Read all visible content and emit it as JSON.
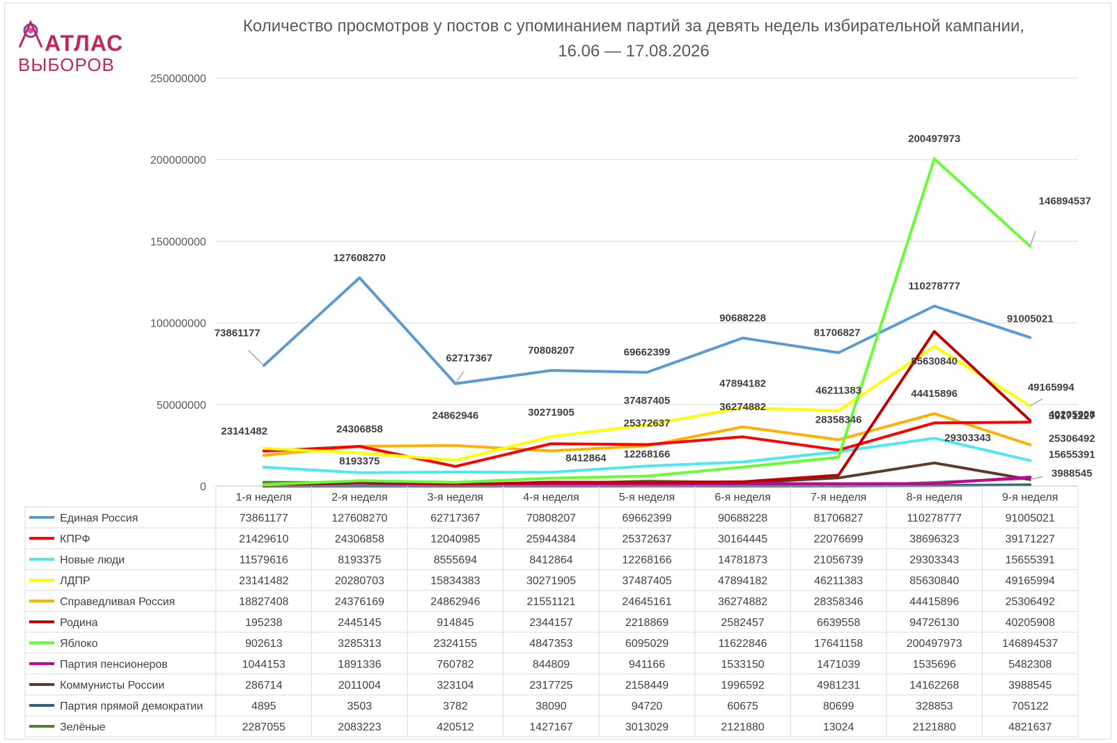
{
  "logo": {
    "line1": "АТЛАС",
    "line2": "ВЫБОРОВ"
  },
  "chart_data": {
    "type": "line",
    "title_line1": "Количество просмотров у постов с упоминанием партий за девять недель избирательной кампании,",
    "title_line2": "16.06 — 17.08.2026",
    "ylim": [
      0,
      250000000
    ],
    "yticks": [
      "0",
      "50000000",
      "100000000",
      "150000000",
      "200000000",
      "250000000"
    ],
    "ytick_values": [
      0,
      50000000,
      100000000,
      150000000,
      200000000,
      250000000
    ],
    "grid": true,
    "legend": "data-table",
    "categories": [
      "1-я неделя",
      "2-я неделя",
      "3-я неделя",
      "4-я неделя",
      "5-я неделя",
      "6-я неделя",
      "7-я неделя",
      "8-я неделя",
      "9-я неделя"
    ],
    "series": [
      {
        "name": "Единая Россия",
        "color": "#5b9bd5",
        "values": [
          73861177,
          127608270,
          62717367,
          70808207,
          69662399,
          90688228,
          81706827,
          110278777,
          91005021
        ]
      },
      {
        "name": "КПРФ",
        "color": "#ff0000",
        "values": [
          21429610,
          24306858,
          12040985,
          25944384,
          25372637,
          30164445,
          22076699,
          38696323,
          39171227
        ]
      },
      {
        "name": "Новые люди",
        "color": "#4ee8f2",
        "values": [
          11579616,
          8193375,
          8555694,
          8412864,
          12268166,
          14781873,
          21056739,
          29303343,
          15655391
        ]
      },
      {
        "name": "ЛДПР",
        "color": "#ffff00",
        "values": [
          23141482,
          20280703,
          15834383,
          30271905,
          37487405,
          47894182,
          46211383,
          85630840,
          49165994
        ]
      },
      {
        "name": "Справедливая Россия",
        "color": "#ffb000",
        "values": [
          18827408,
          24376169,
          24862946,
          21551121,
          24645161,
          36274882,
          28358346,
          44415896,
          25306492
        ]
      },
      {
        "name": "Родина",
        "color": "#c00000",
        "values": [
          195238,
          2445145,
          914845,
          2344157,
          2218869,
          2582457,
          6639558,
          94726130,
          40205908
        ]
      },
      {
        "name": "Яблоко",
        "color": "#66ff33",
        "values": [
          902613,
          3285313,
          2324155,
          4847353,
          6095029,
          11622846,
          17641158,
          200497973,
          146894537
        ]
      },
      {
        "name": "Партия пенсионеров",
        "color": "#cc0099",
        "values": [
          1044153,
          1891336,
          760782,
          844809,
          941166,
          1533150,
          1471039,
          1535696,
          5482308
        ]
      },
      {
        "name": "Коммунисты России",
        "color": "#5f3a2a",
        "values": [
          286714,
          2011004,
          323104,
          2317725,
          2158449,
          1996592,
          4981231,
          14162268,
          3988545
        ]
      },
      {
        "name": "Партия прямой демократии",
        "color": "#2e6378",
        "values": [
          4895,
          3503,
          3782,
          38090,
          94720,
          60675,
          80699,
          328853,
          705122
        ]
      },
      {
        "name": "Зелёные",
        "color": "#548235",
        "values": [
          2287055,
          2083223,
          420512,
          1427167,
          3013029,
          2121880,
          13024,
          2121880,
          4821637
        ]
      }
    ],
    "data_labels": [
      {
        "text": "73861177",
        "series": 0,
        "point": 0
      },
      {
        "text": "127608270",
        "series": 0,
        "point": 1
      },
      {
        "text": "62717367",
        "series": 0,
        "point": 2
      },
      {
        "text": "70808207",
        "series": 0,
        "point": 3
      },
      {
        "text": "69662399",
        "series": 0,
        "point": 4
      },
      {
        "text": "90688228",
        "series": 0,
        "point": 5
      },
      {
        "text": "81706827",
        "series": 0,
        "point": 6
      },
      {
        "text": "110278777",
        "series": 0,
        "point": 7
      },
      {
        "text": "91005021",
        "series": 0,
        "point": 8
      },
      {
        "text": "23141482",
        "series": 3,
        "point": 0
      },
      {
        "text": "24306858",
        "series": 1,
        "point": 1
      },
      {
        "text": "24862946",
        "series": 4,
        "point": 2
      },
      {
        "text": "30271905",
        "series": 3,
        "point": 3
      },
      {
        "text": "37487405",
        "series": 3,
        "point": 4
      },
      {
        "text": "47894182",
        "series": 3,
        "point": 5
      },
      {
        "text": "46211383",
        "series": 3,
        "point": 6
      },
      {
        "text": "85630840",
        "series": 3,
        "point": 7
      },
      {
        "text": "49165994",
        "series": 3,
        "point": 8
      },
      {
        "text": "8193375",
        "series": 2,
        "point": 1
      },
      {
        "text": "8412864",
        "series": 2,
        "point": 3
      },
      {
        "text": "25372637",
        "series": 1,
        "point": 4
      },
      {
        "text": "12268166",
        "series": 2,
        "point": 4
      },
      {
        "text": "36274882",
        "series": 4,
        "point": 5
      },
      {
        "text": "28358346",
        "series": 4,
        "point": 6
      },
      {
        "text": "44415896",
        "series": 4,
        "point": 7
      },
      {
        "text": "29303343",
        "series": 2,
        "point": 7
      },
      {
        "text": "200497973",
        "series": 6,
        "point": 7
      },
      {
        "text": "146894537",
        "series": 6,
        "point": 8
      },
      {
        "text": "40205908",
        "series": 5,
        "point": 8
      },
      {
        "text": "39171227",
        "series": 1,
        "point": 8
      },
      {
        "text": "25306492",
        "series": 4,
        "point": 8
      },
      {
        "text": "15655391",
        "series": 2,
        "point": 8
      },
      {
        "text": "3988545",
        "series": 8,
        "point": 8
      }
    ]
  }
}
